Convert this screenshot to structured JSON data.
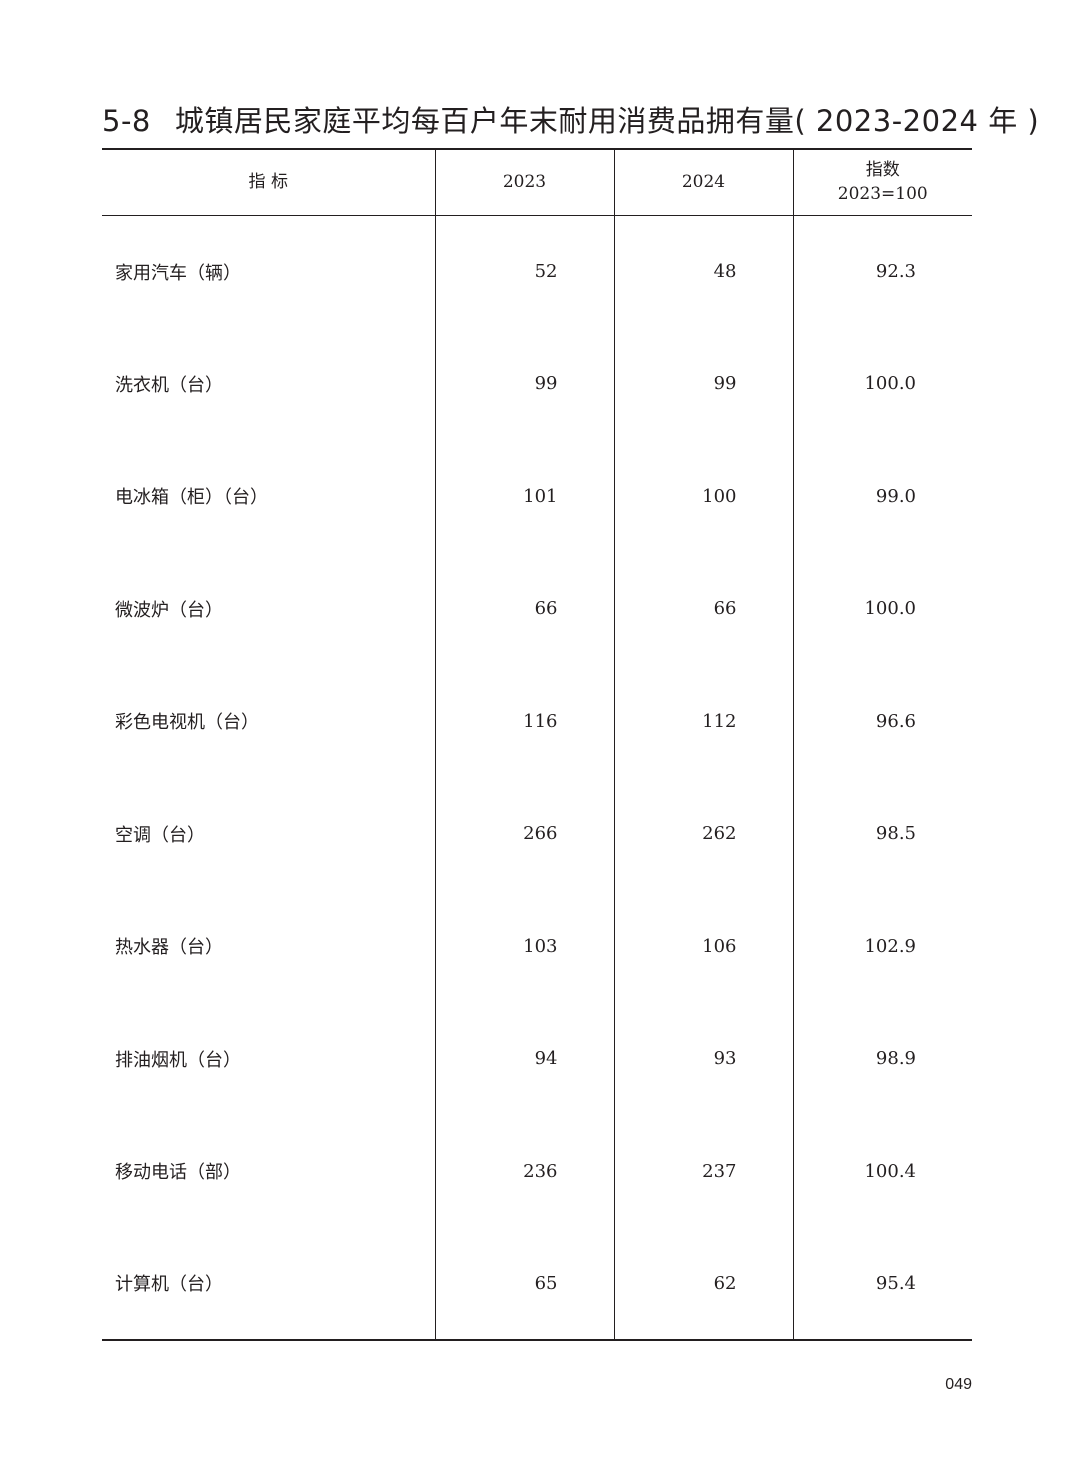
{
  "title": {
    "number": "5-8",
    "text": "城镇居民家庭平均每百户年末耐用消费品拥有量( 2023-2024 年 )"
  },
  "table": {
    "headers": [
      "指 标",
      "2023",
      "2024",
      "指数",
      "2023=100"
    ],
    "rows": [
      [
        "家用汽车（辆）",
        "52",
        "48",
        "92.3"
      ],
      [
        "洗衣机（台）",
        "99",
        "99",
        "100.0"
      ],
      [
        "电冰箱（柜）（台）",
        "101",
        "100",
        "99.0"
      ],
      [
        "微波炉（台）",
        "66",
        "66",
        "100.0"
      ],
      [
        "彩色电视机（台）",
        "116",
        "112",
        "96.6"
      ],
      [
        "空调（台）",
        "266",
        "262",
        "98.5"
      ],
      [
        "热水器（台）",
        "103",
        "106",
        "102.9"
      ],
      [
        "排油烟机（台）",
        "94",
        "93",
        "98.9"
      ],
      [
        "移动电话（部）",
        "236",
        "237",
        "100.4"
      ],
      [
        "计算机（台）",
        "65",
        "62",
        "95.4"
      ]
    ]
  },
  "page_number": "049"
}
